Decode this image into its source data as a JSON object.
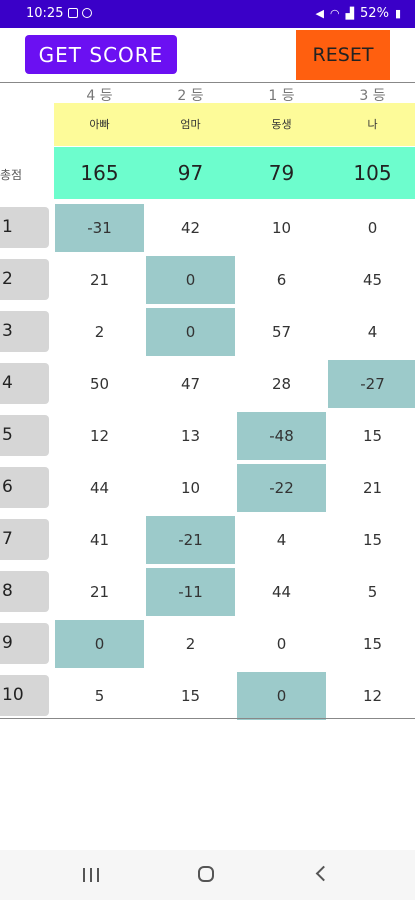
{
  "status": {
    "time": "10:25",
    "battery": "52%"
  },
  "buttons": {
    "get_score": "GET SCORE",
    "reset": "RESET"
  },
  "players": [
    {
      "rank": "4 등",
      "name": "아빠",
      "total": "165"
    },
    {
      "rank": "2 등",
      "name": "엄마",
      "total": "97"
    },
    {
      "rank": "1 등",
      "name": "동생",
      "total": "79"
    },
    {
      "rank": "3 등",
      "name": "나",
      "total": "105"
    }
  ],
  "total_label": "총점",
  "rounds": [
    {
      "label": "1",
      "scores": [
        "-31",
        "42",
        "10",
        "0"
      ],
      "lowest": [
        0
      ]
    },
    {
      "label": "2",
      "scores": [
        "21",
        "0",
        "6",
        "45"
      ],
      "lowest": [
        1
      ]
    },
    {
      "label": "3",
      "scores": [
        "2",
        "0",
        "57",
        "4"
      ],
      "lowest": [
        1
      ]
    },
    {
      "label": "4",
      "scores": [
        "50",
        "47",
        "28",
        "-27"
      ],
      "lowest": [
        3
      ]
    },
    {
      "label": "5",
      "scores": [
        "12",
        "13",
        "-48",
        "15"
      ],
      "lowest": [
        2
      ]
    },
    {
      "label": "6",
      "scores": [
        "44",
        "10",
        "-22",
        "21"
      ],
      "lowest": [
        2
      ]
    },
    {
      "label": "7",
      "scores": [
        "41",
        "-21",
        "4",
        "15"
      ],
      "lowest": [
        1
      ]
    },
    {
      "label": "8",
      "scores": [
        "21",
        "-11",
        "44",
        "5"
      ],
      "lowest": [
        1
      ]
    },
    {
      "label": "9",
      "scores": [
        "0",
        "2",
        "0",
        "15"
      ],
      "lowest": [
        0
      ]
    },
    {
      "label": "10",
      "scores": [
        "5",
        "15",
        "0",
        "12"
      ],
      "lowest": [
        2
      ]
    }
  ],
  "colors": {
    "header_bar": "#3a00c8",
    "get_score": "#6b10f2",
    "reset": "#ff5f0f",
    "names_row": "#fdfb99",
    "totals_row": "#6dfdcd",
    "lowest_cell": "#9ccaca"
  },
  "nav": {
    "recent": "recent-apps-icon",
    "home": "home-icon",
    "back": "back-icon"
  }
}
